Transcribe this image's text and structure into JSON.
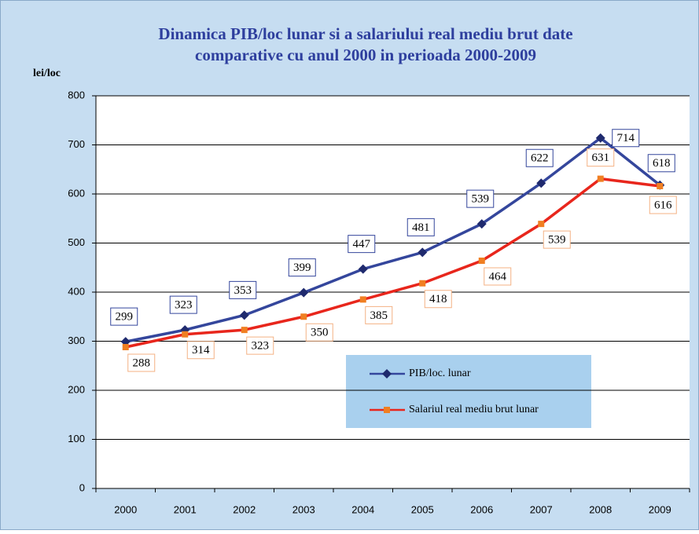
{
  "chart_data": {
    "type": "line",
    "title": [
      "Dinamica PIB/loc lunar si a salariului real mediu brut date",
      "comparative cu anul 2000 in perioada 2000-2009"
    ],
    "y_label": "lei/loc",
    "categories": [
      "2000",
      "2001",
      "2002",
      "2003",
      "2004",
      "2005",
      "2006",
      "2007",
      "2008",
      "2009"
    ],
    "series": [
      {
        "name": "PIB/loc. lunar",
        "color": "#34469c",
        "marker_color": "#1f2a6e",
        "marker": "diamond",
        "label_border": "#34469c",
        "values": [
          299,
          323,
          353,
          399,
          447,
          481,
          539,
          622,
          714,
          618
        ]
      },
      {
        "name": "Salariul real mediu brut lunar",
        "color": "#e8261c",
        "marker_color": "#f07f22",
        "marker": "square",
        "label_border": "#f4b183",
        "values": [
          288,
          314,
          323,
          350,
          385,
          418,
          464,
          539,
          631,
          616
        ]
      }
    ],
    "ylim": [
      0,
      800
    ],
    "yticks": [
      0,
      100,
      200,
      300,
      400,
      500,
      600,
      700,
      800
    ],
    "grid": true
  }
}
